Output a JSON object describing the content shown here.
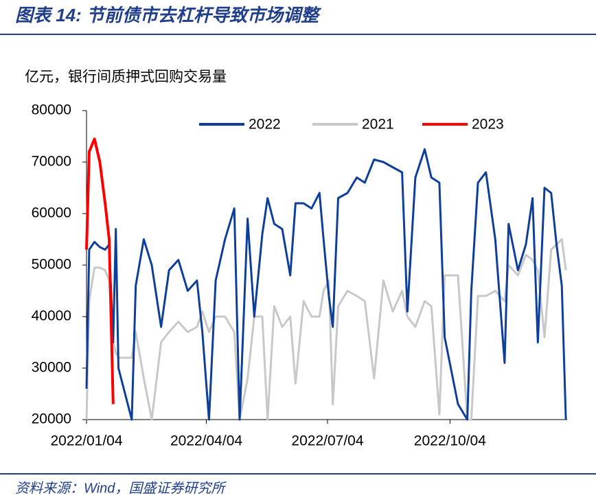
{
  "chart_data": {
    "type": "line",
    "title": "图表 14:  节前债市去杠杆导致市场调整",
    "ylabel": "亿元，银行间质押式回购交易量",
    "source": "资料来源：Wind，国盛证券研究所",
    "x": [
      "2022/01/04",
      "2022/01/06",
      "2022/01/10",
      "2022/01/14",
      "2022/01/18",
      "2022/01/21",
      "2022/01/24",
      "2022/01/26",
      "2022/01/28",
      "2022/02/07",
      "2022/02/10",
      "2022/02/16",
      "2022/02/22",
      "2022/03/01",
      "2022/03/07",
      "2022/03/14",
      "2022/03/21",
      "2022/03/28",
      "2022/04/01",
      "2022/04/06",
      "2022/04/11",
      "2022/04/18",
      "2022/04/25",
      "2022/04/29",
      "2022/05/05",
      "2022/05/10",
      "2022/05/16",
      "2022/05/20",
      "2022/05/25",
      "2022/05/31",
      "2022/06/06",
      "2022/06/10",
      "2022/06/16",
      "2022/06/22",
      "2022/06/28",
      "2022/07/01",
      "2022/07/05",
      "2022/07/08",
      "2022/07/12",
      "2022/07/19",
      "2022/07/26",
      "2022/08/01",
      "2022/08/08",
      "2022/08/15",
      "2022/08/22",
      "2022/08/29",
      "2022/09/02",
      "2022/09/08",
      "2022/09/15",
      "2022/09/20",
      "2022/09/26",
      "2022/09/30",
      "2022/10/10",
      "2022/10/17",
      "2022/10/20",
      "2022/10/25",
      "2022/10/31",
      "2022/11/07",
      "2022/11/14",
      "2022/11/17",
      "2022/11/24",
      "2022/11/30",
      "2022/12/05",
      "2022/12/09",
      "2022/12/14",
      "2022/12/19",
      "2022/12/23",
      "2022/12/27",
      "2022/12/30"
    ],
    "series": [
      {
        "name": "2022",
        "color": "#0d3e9a",
        "values": [
          26000,
          53000,
          54500,
          53500,
          53000,
          54000,
          35000,
          57000,
          30000,
          20000,
          46000,
          55000,
          50000,
          38000,
          49000,
          51000,
          45000,
          47000,
          37000,
          20000,
          47000,
          55000,
          61000,
          20000,
          59000,
          40000,
          56000,
          63000,
          58000,
          57000,
          48000,
          62000,
          62000,
          61000,
          64000,
          55000,
          44000,
          38000,
          63000,
          64000,
          67000,
          66000,
          70500,
          70000,
          69000,
          68000,
          41000,
          67000,
          72500,
          67000,
          66000,
          36000,
          23000,
          20000,
          45000,
          66000,
          68000,
          55000,
          31000,
          58000,
          49000,
          54000,
          63000,
          35000,
          65000,
          64000,
          54000,
          46000,
          20000
        ]
      },
      {
        "name": "2021",
        "color": "#c8c8c8",
        "values": [
          20000,
          43000,
          49500,
          49500,
          49000,
          47000,
          35000,
          33000,
          32000,
          32000,
          37000,
          28000,
          20000,
          35000,
          37000,
          39000,
          37000,
          38000,
          41000,
          37000,
          40000,
          40000,
          37000,
          20000,
          28000,
          40000,
          40000,
          20000,
          42000,
          38000,
          40000,
          27000,
          43000,
          40000,
          40000,
          45000,
          47000,
          23000,
          42000,
          45000,
          44000,
          43000,
          28000,
          47000,
          41000,
          45000,
          40000,
          38000,
          43000,
          42000,
          21000,
          48000,
          48000,
          20000,
          20000,
          44000,
          44000,
          45000,
          43000,
          50000,
          48000,
          52000,
          51000,
          49000,
          36000,
          53000,
          54000,
          55000,
          49000
        ]
      },
      {
        "name": "2023",
        "color": "#ff0000",
        "values": [
          53000,
          72000,
          74500,
          70000,
          62000,
          55000,
          23000,
          null,
          null,
          null,
          null,
          null,
          null,
          null,
          null,
          null,
          null,
          null,
          null,
          null,
          null,
          null,
          null,
          null,
          null,
          null,
          null,
          null,
          null,
          null,
          null,
          null,
          null,
          null,
          null,
          null,
          null,
          null,
          null,
          null,
          null,
          null,
          null,
          null,
          null,
          null,
          null,
          null,
          null,
          null,
          null,
          null,
          null,
          null,
          null,
          null,
          null,
          null,
          null,
          null,
          null,
          null,
          null,
          null,
          null,
          null,
          null,
          null,
          null
        ]
      }
    ],
    "xlim": [
      "2022/01/04",
      "2022/12/31"
    ],
    "xticks": [
      "2022/01/04",
      "2022/04/04",
      "2022/07/04",
      "2022/10/04"
    ],
    "ylim": [
      20000,
      80000
    ],
    "yticks": [
      20000,
      30000,
      40000,
      50000,
      60000,
      70000,
      80000
    ],
    "legend": "top"
  }
}
